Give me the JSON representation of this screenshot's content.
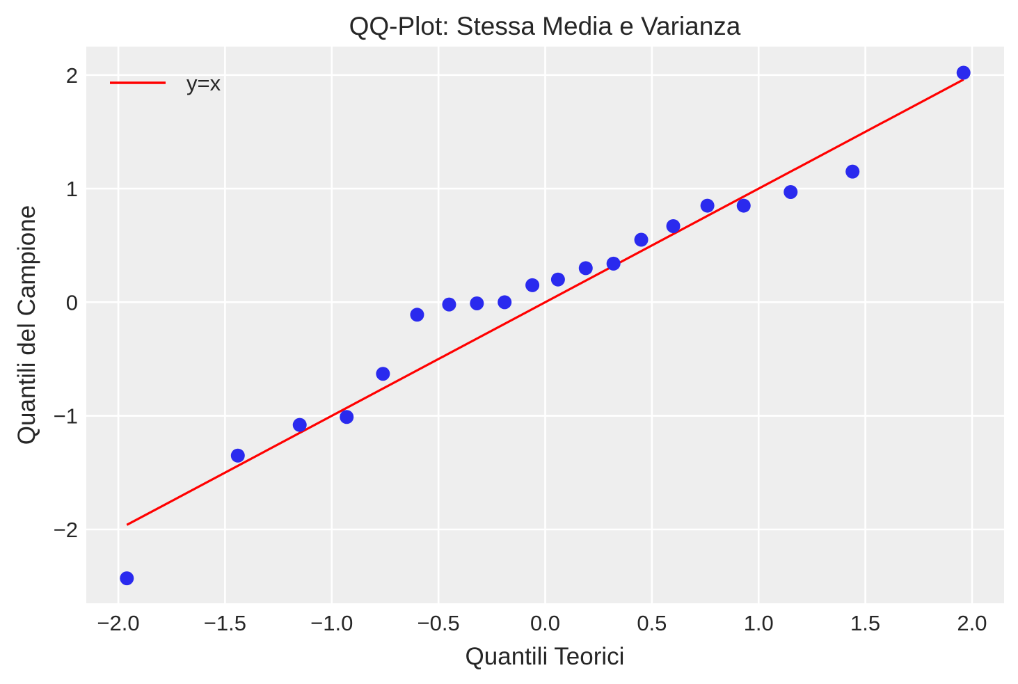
{
  "chart_data": {
    "type": "scatter",
    "title": "QQ-Plot: Stessa Media e Varianza",
    "xlabel": "Quantili Teorici",
    "ylabel": "Quantili del Campione",
    "xlim": [
      -2.15,
      2.15
    ],
    "ylim": [
      -2.65,
      2.25
    ],
    "xticks": [
      -2.0,
      -1.5,
      -1.0,
      -0.5,
      0.0,
      0.5,
      1.0,
      1.5,
      2.0
    ],
    "xtick_labels": [
      "−2.0",
      "−1.5",
      "−1.0",
      "−0.5",
      "0.0",
      "0.5",
      "1.0",
      "1.5",
      "2.0"
    ],
    "yticks": [
      -2,
      -1,
      0,
      1,
      2
    ],
    "ytick_labels": [
      "−2",
      "−1",
      "0",
      "1",
      "2"
    ],
    "grid": true,
    "background": "#eeeeee",
    "points_color": "#2a2aee",
    "line_color": "#ff0000",
    "legend_position": "top-left",
    "series": [
      {
        "kind": "points",
        "x": [
          -1.96,
          -1.44,
          -1.15,
          -0.93,
          -0.76,
          -0.6,
          -0.45,
          -0.32,
          -0.19,
          -0.06,
          0.06,
          0.19,
          0.32,
          0.45,
          0.6,
          0.76,
          0.93,
          1.15,
          1.44,
          1.96
        ],
        "y": [
          -2.43,
          -1.35,
          -1.08,
          -1.01,
          -0.63,
          -0.11,
          -0.02,
          -0.01,
          0.0,
          0.15,
          0.2,
          0.3,
          0.34,
          0.55,
          0.67,
          0.85,
          0.85,
          0.97,
          1.15,
          2.02
        ]
      },
      {
        "kind": "line",
        "name": "y=x",
        "x": [
          -1.96,
          1.96
        ],
        "y": [
          -1.96,
          1.96
        ]
      }
    ]
  }
}
